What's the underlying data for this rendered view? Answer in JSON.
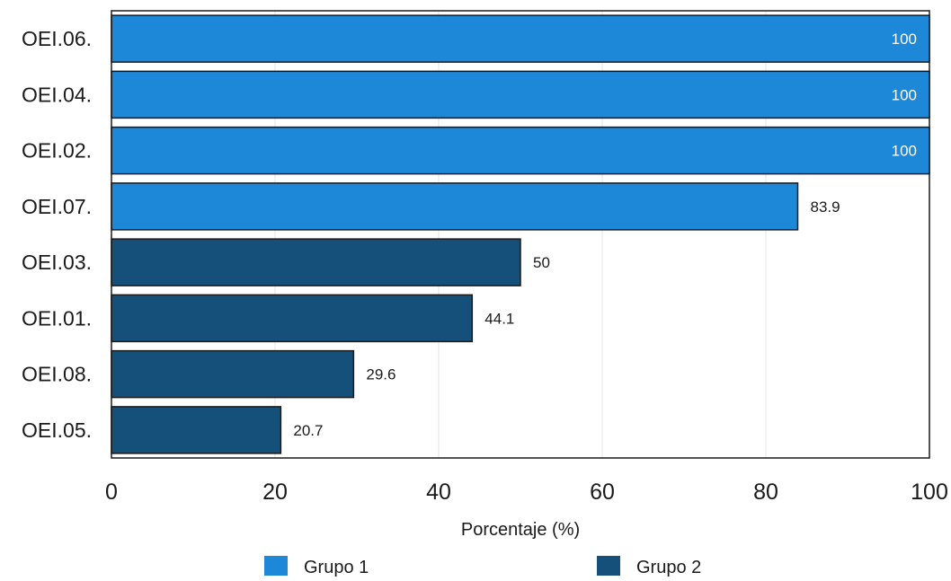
{
  "chart_data": {
    "type": "bar",
    "orientation": "horizontal",
    "categories": [
      "OEI.06.",
      "OEI.04.",
      "OEI.02.",
      "OEI.07.",
      "OEI.03.",
      "OEI.01.",
      "OEI.08.",
      "OEI.05."
    ],
    "values": [
      100,
      100,
      100,
      83.9,
      50,
      44.1,
      29.6,
      20.7
    ],
    "value_labels": [
      "100",
      "100",
      "100",
      "83.9",
      "50",
      "44.1",
      "29.6",
      "20.7"
    ],
    "groups": [
      "Grupo 1",
      "Grupo 1",
      "Grupo 1",
      "Grupo 1",
      "Grupo 2",
      "Grupo 2",
      "Grupo 2",
      "Grupo 2"
    ],
    "legend": [
      {
        "name": "Grupo 1",
        "color": "#1e88d8"
      },
      {
        "name": "Grupo 2",
        "color": "#14507a"
      }
    ],
    "xlabel": "Porcentaje (%)",
    "xlim": [
      0,
      100
    ],
    "xticks": [
      0,
      20,
      40,
      60,
      80,
      100
    ],
    "grid": true,
    "legend_position": "bottom"
  }
}
